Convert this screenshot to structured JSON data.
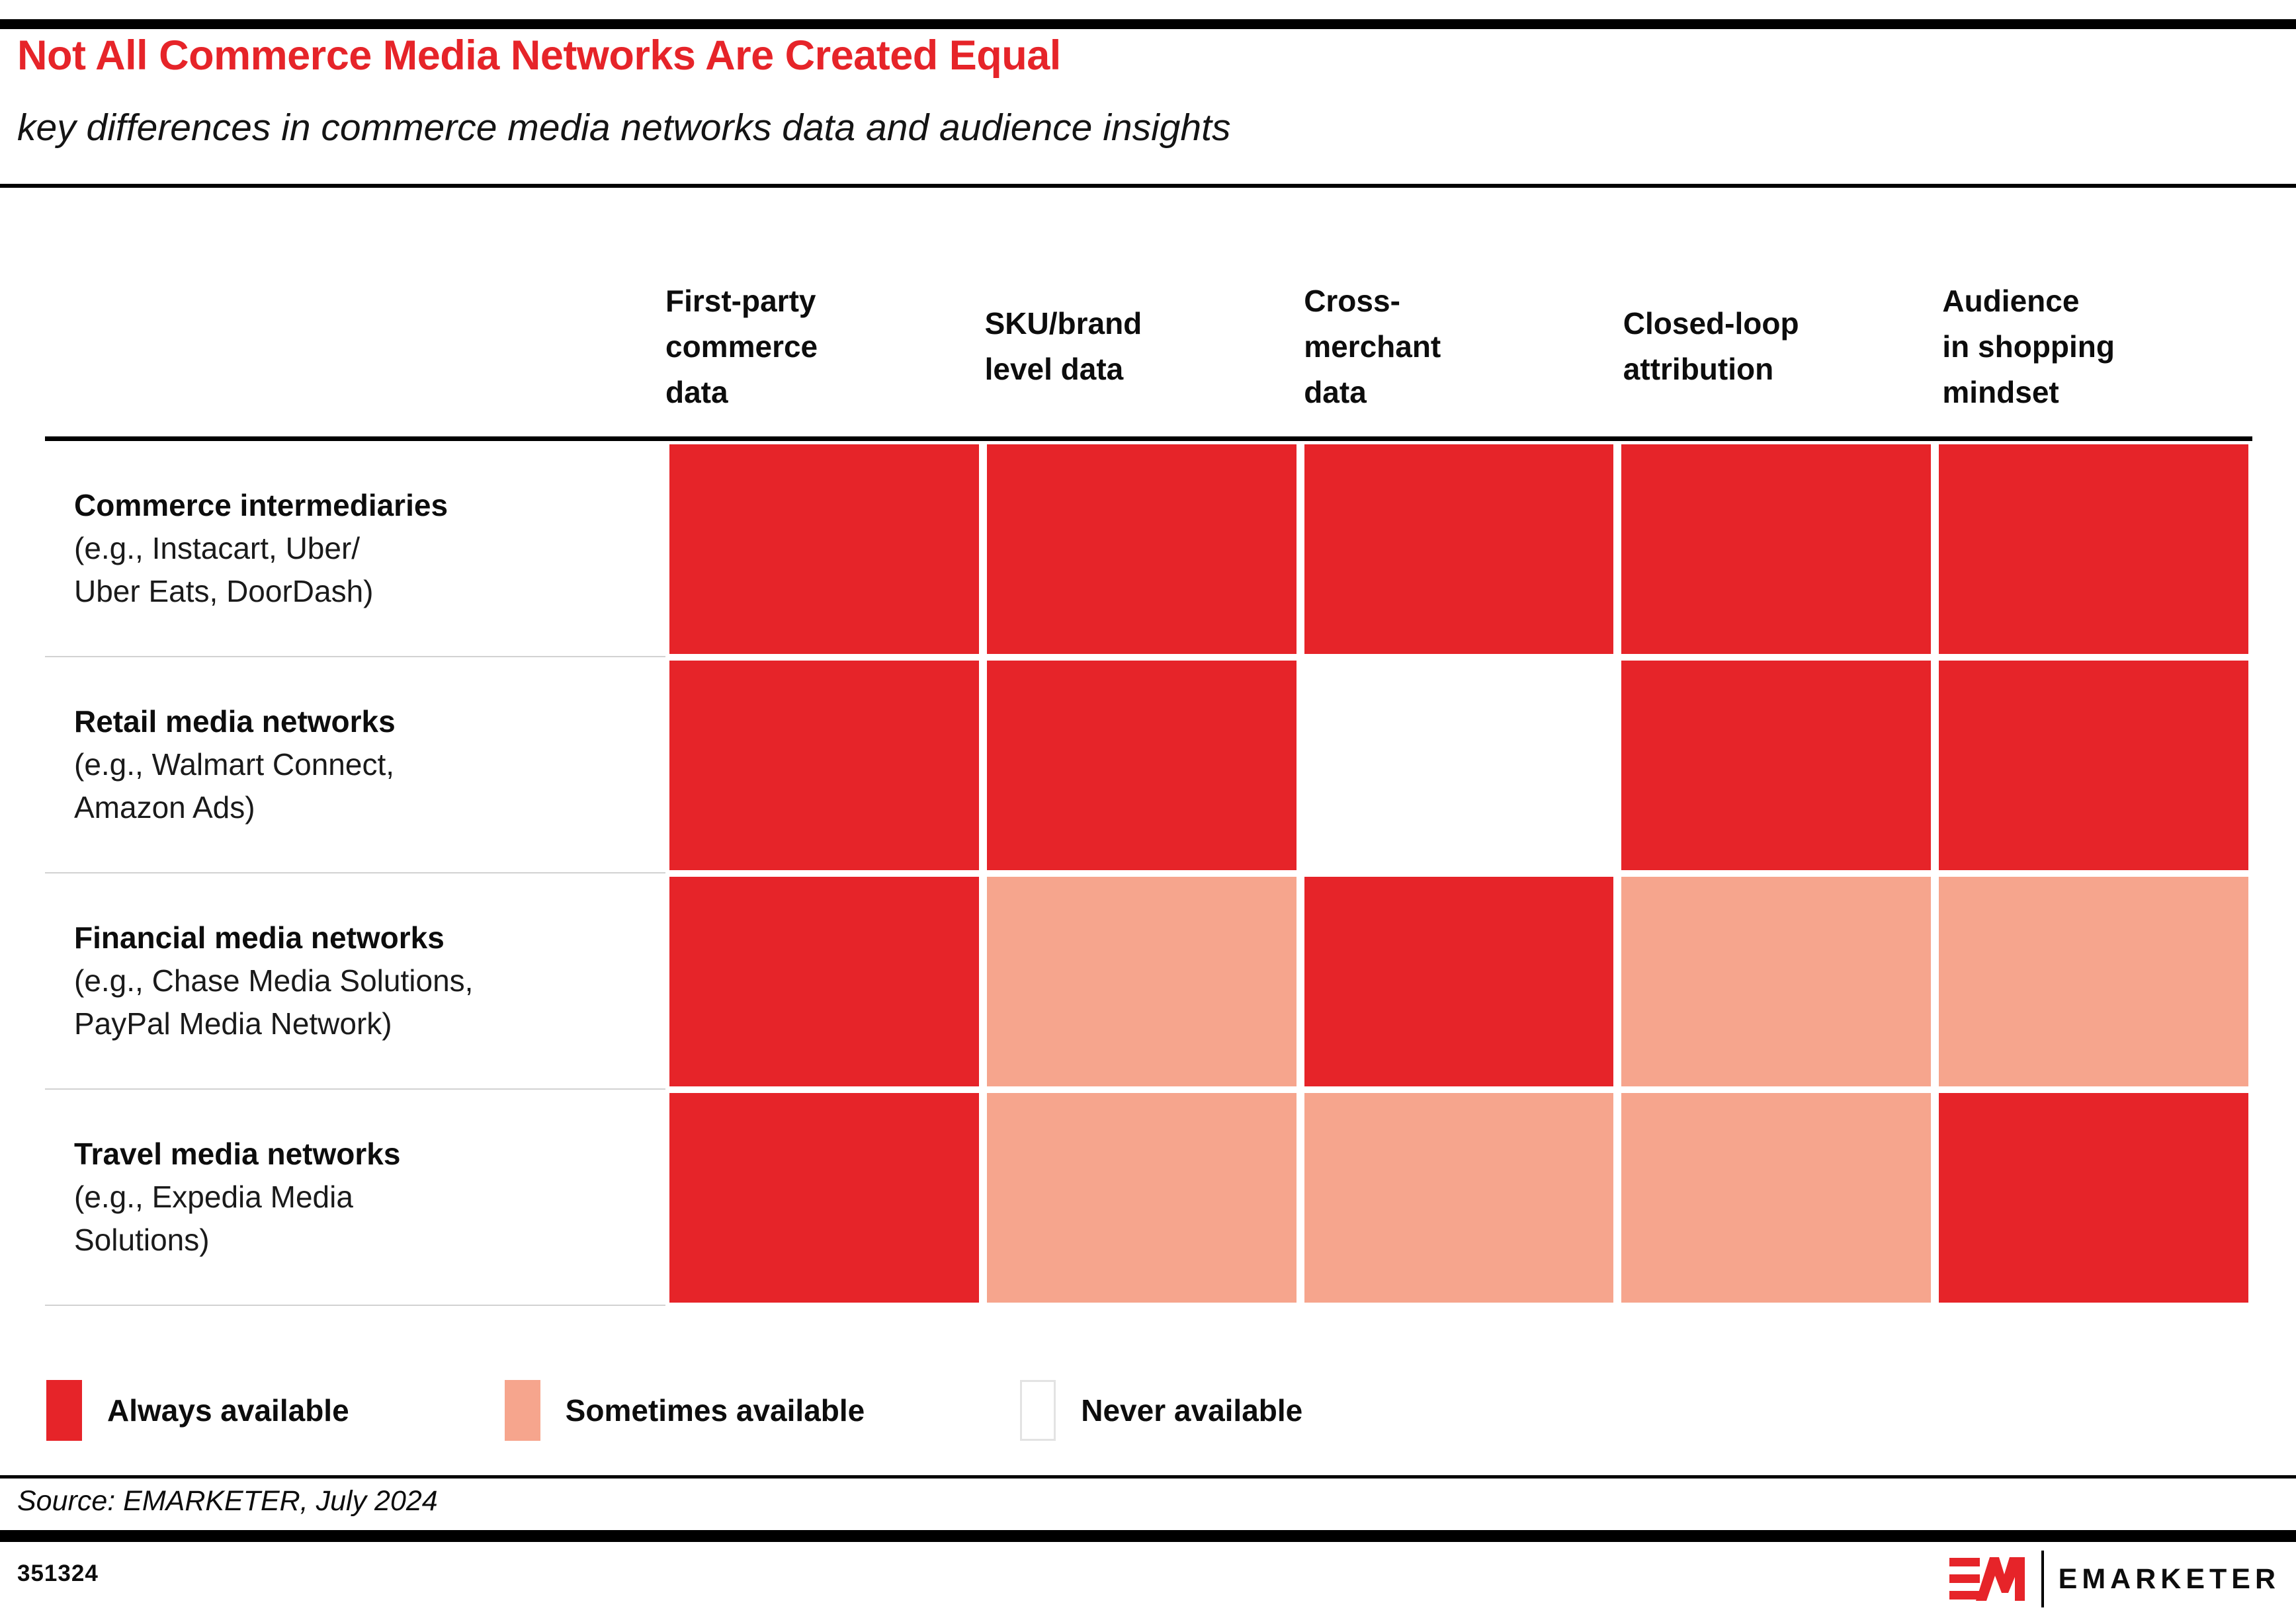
{
  "header": {
    "title": "Not All Commerce Media Networks Are Created Equal",
    "subtitle": "key differences in commerce media networks data and audience insights"
  },
  "table": {
    "columns": [
      "First-party\ncommerce\ndata",
      "SKU/brand\nlevel data",
      "Cross-\nmerchant\ndata",
      "Closed-loop\nattribution",
      "Audience\nin shopping\nmindset"
    ],
    "rows": [
      {
        "name": "Commerce intermediaries",
        "examples": "(e.g., Instacart, Uber/\nUber Eats, DoorDash)",
        "values": [
          "always",
          "always",
          "always",
          "always",
          "always"
        ]
      },
      {
        "name": "Retail media networks",
        "examples": "(e.g., Walmart Connect,\nAmazon Ads)",
        "values": [
          "always",
          "always",
          "never",
          "always",
          "always"
        ]
      },
      {
        "name": "Financial media networks",
        "examples": "(e.g., Chase Media Solutions,\nPayPal Media Network)",
        "values": [
          "always",
          "sometimes",
          "always",
          "sometimes",
          "sometimes"
        ]
      },
      {
        "name": "Travel media networks",
        "examples": "(e.g., Expedia Media\nSolutions)",
        "values": [
          "always",
          "sometimes",
          "sometimes",
          "sometimes",
          "always"
        ]
      }
    ]
  },
  "legend": [
    {
      "key": "always",
      "label": "Always available"
    },
    {
      "key": "sometimes",
      "label": "Sometimes available"
    },
    {
      "key": "never",
      "label": "Never available"
    }
  ],
  "colors": {
    "accent": "#E62429",
    "always": "#E62429",
    "sometimes": "#F6A58D",
    "never": "#FFFFFF",
    "never_border": "#E3E3E3",
    "separator": "#D2D2D2"
  },
  "source": "Source: EMARKETER, July 2024",
  "footer": {
    "chart_id": "351324",
    "brand": "EMARKETER"
  },
  "chart_data": {
    "type": "heatmap",
    "title": "Not All Commerce Media Networks Are Created Equal",
    "subtitle": "key differences in commerce media networks data and audience insights",
    "columns": [
      "First-party commerce data",
      "SKU/brand level data",
      "Cross-merchant data",
      "Closed-loop attribution",
      "Audience in shopping mindset"
    ],
    "rows": [
      "Commerce intermediaries (e.g., Instacart, Uber/Uber Eats, DoorDash)",
      "Retail media networks (e.g., Walmart Connect, Amazon Ads)",
      "Financial media networks (e.g., Chase Media Solutions, PayPal Media Network)",
      "Travel media networks (e.g., Expedia Media Solutions)"
    ],
    "values": [
      [
        "always",
        "always",
        "always",
        "always",
        "always"
      ],
      [
        "always",
        "always",
        "never",
        "always",
        "always"
      ],
      [
        "always",
        "sometimes",
        "always",
        "sometimes",
        "sometimes"
      ],
      [
        "always",
        "sometimes",
        "sometimes",
        "sometimes",
        "always"
      ]
    ],
    "value_scale": [
      "always",
      "sometimes",
      "never"
    ],
    "legend": [
      "Always available",
      "Sometimes available",
      "Never available"
    ],
    "legend_position": "bottom",
    "source": "Source: EMARKETER, July 2024",
    "chart_id": "351324"
  }
}
